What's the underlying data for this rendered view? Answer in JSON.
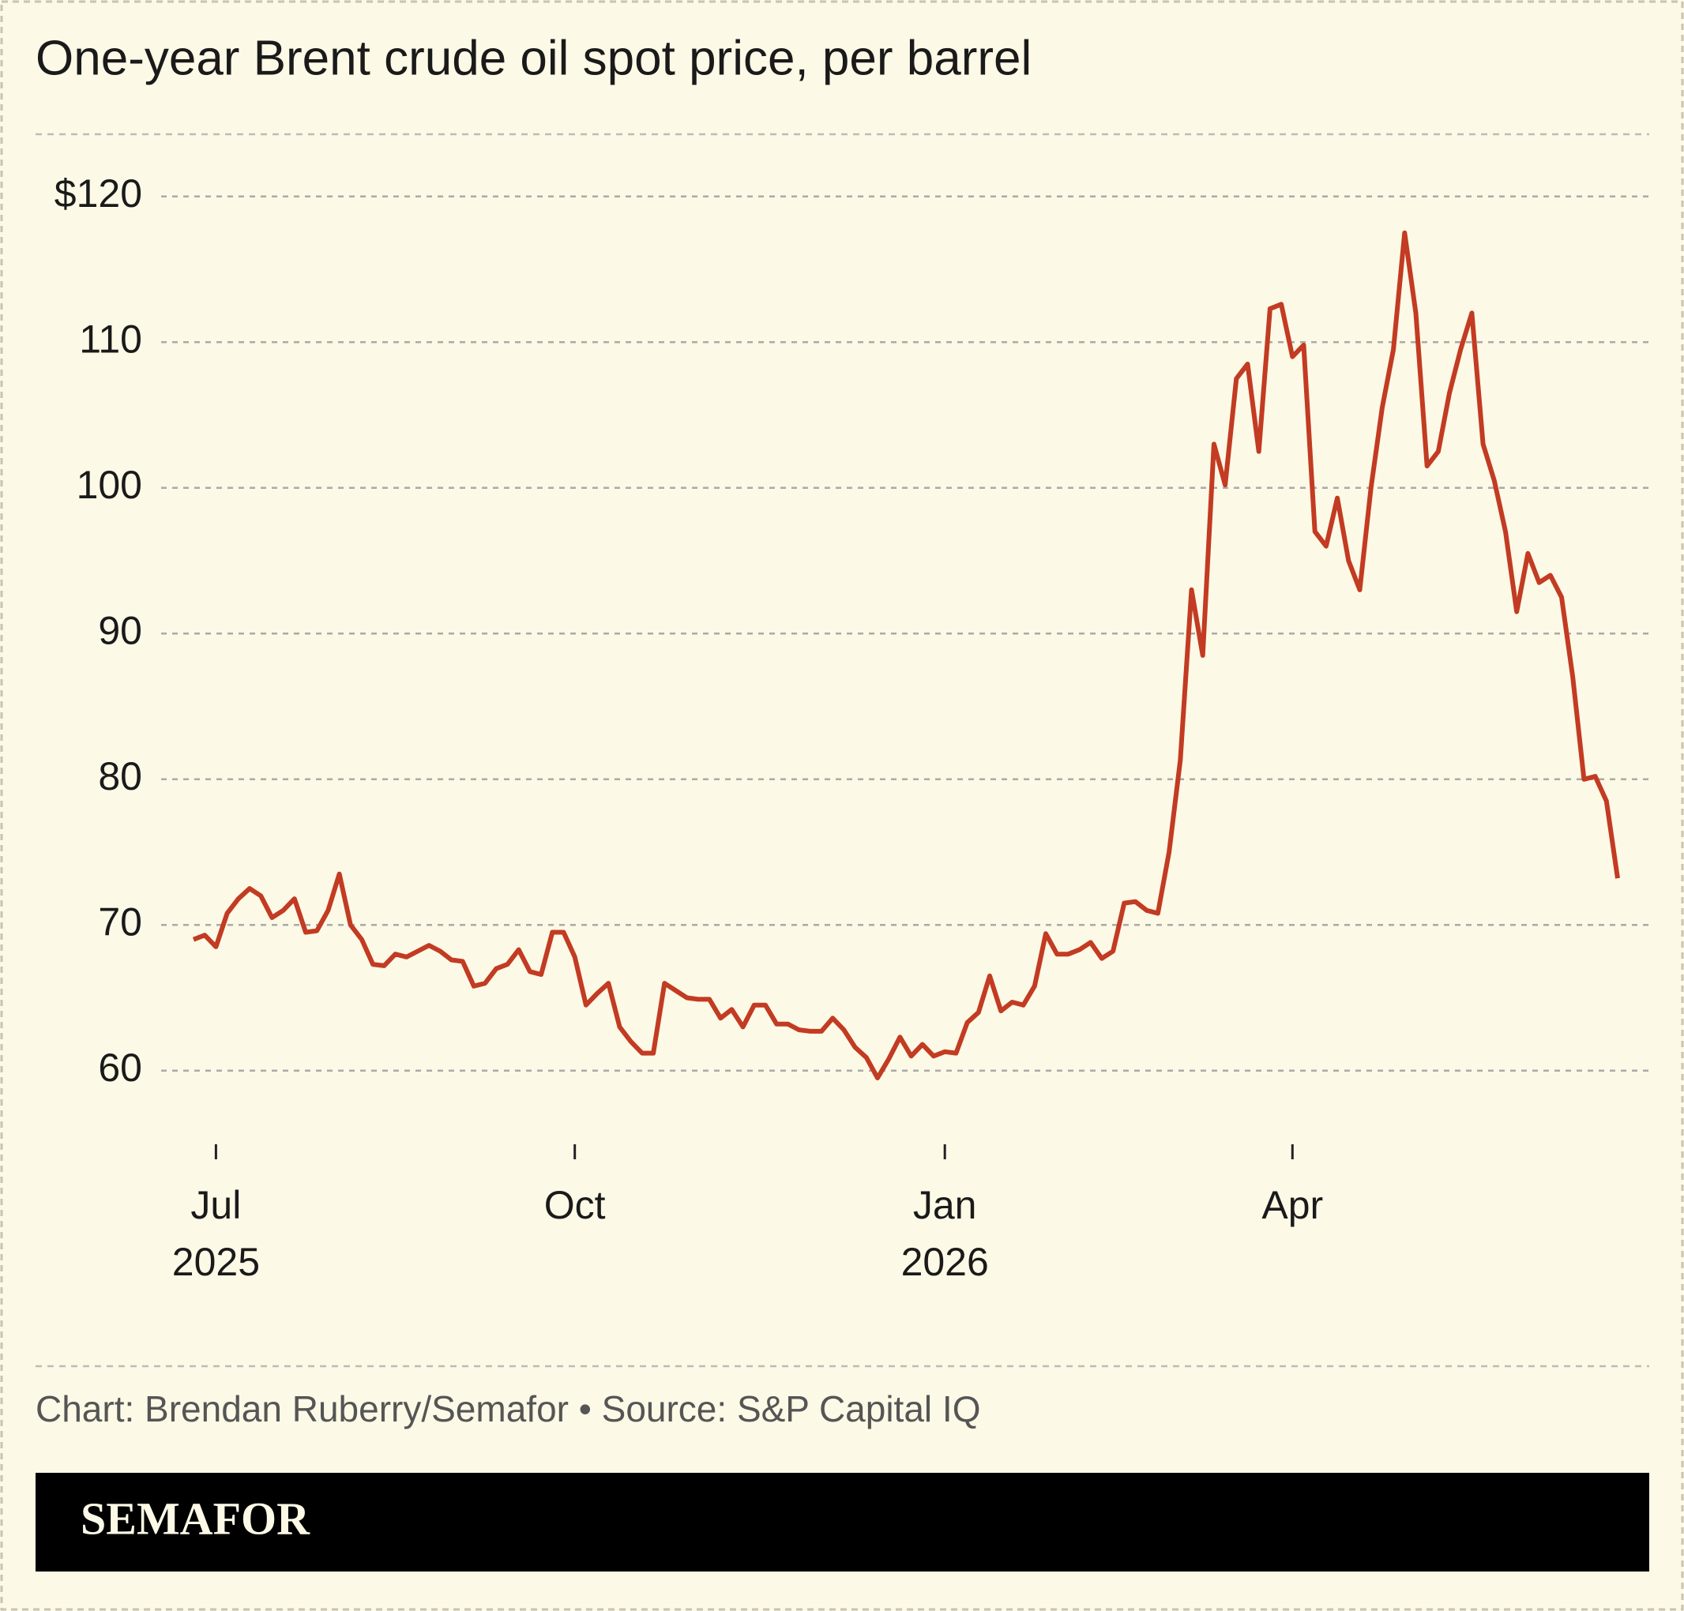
{
  "chart_data": {
    "type": "line",
    "title": "One-year Brent crude oil spot price, per barrel",
    "source": "Chart: Brendan Ruberry/Semafor • Source: S&P Capital IQ",
    "brand": "SEMAFOR",
    "categories": [
      null,
      null,
      "Jul 2025",
      null,
      null,
      null,
      null,
      null,
      null,
      null,
      null,
      null,
      null,
      null,
      null,
      null,
      null,
      null,
      null,
      null,
      null,
      null,
      null,
      null,
      null,
      null,
      null,
      null,
      null,
      null,
      null,
      null,
      null,
      null,
      "Oct",
      null,
      null,
      null,
      null,
      null,
      null,
      null,
      null,
      null,
      null,
      null,
      null,
      null,
      null,
      null,
      null,
      null,
      null,
      null,
      null,
      null,
      null,
      null,
      null,
      null,
      null,
      null,
      null,
      null,
      null,
      null,
      null,
      "Jan 2026",
      null,
      null,
      null,
      null,
      null,
      null,
      null,
      null,
      null,
      null,
      null,
      null,
      null,
      null,
      null,
      null,
      null,
      null,
      null,
      null,
      null,
      null,
      null,
      null,
      null,
      null,
      null,
      null,
      null,
      null,
      "Apr",
      null,
      null,
      null,
      null,
      null,
      null,
      null,
      null,
      null,
      null,
      null,
      null,
      null,
      null,
      null,
      null,
      null,
      null,
      null,
      null,
      null,
      null,
      null,
      null,
      null,
      null,
      null,
      null,
      null
    ],
    "series": [
      {
        "name": "Brent crude",
        "color": "#c23b22",
        "values": [
          69,
          69.3,
          68.5,
          70.8,
          71.8,
          72.5,
          72,
          70.5,
          71,
          71.8,
          69.5,
          69.6,
          71,
          73.5,
          70,
          69,
          67.3,
          67.2,
          68,
          67.8,
          68.2,
          68.6,
          68.2,
          67.6,
          67.5,
          65.8,
          66,
          67,
          67.3,
          68.3,
          66.8,
          66.6,
          69.5,
          69.5,
          67.8,
          64.5,
          65.3,
          66,
          63,
          62,
          61.2,
          61.2,
          66,
          65.5,
          65,
          64.9,
          64.9,
          63.6,
          64.2,
          63,
          64.5,
          64.5,
          63.2,
          63.2,
          62.8,
          62.7,
          62.7,
          63.6,
          62.8,
          61.6,
          60.9,
          59.5,
          60.8,
          62.3,
          61,
          61.8,
          61,
          61.3,
          61.2,
          63.3,
          64,
          66.5,
          64.1,
          64.7,
          64.5,
          65.8,
          69.4,
          68,
          68,
          68.3,
          68.8,
          67.7,
          68.2,
          71.5,
          71.6,
          71,
          70.8,
          75,
          81.3,
          93,
          88.5,
          103,
          100.2,
          107.5,
          108.5,
          102.5,
          112.3,
          112.6,
          109,
          109.8,
          97,
          96,
          99.3,
          95,
          93,
          100,
          105.5,
          109.5,
          117.5,
          112,
          101.5,
          102.5,
          106.5,
          109.5,
          112,
          103,
          100.5,
          97,
          91.5,
          95.5,
          93.5,
          94,
          92.5,
          87,
          80,
          80.2,
          78.5,
          73.2
        ]
      }
    ],
    "ylim": [
      55,
      124
    ],
    "yticks": [
      60,
      70,
      80,
      90,
      100,
      110,
      {
        "value": 120,
        "label": "$120"
      }
    ],
    "grid": true
  }
}
